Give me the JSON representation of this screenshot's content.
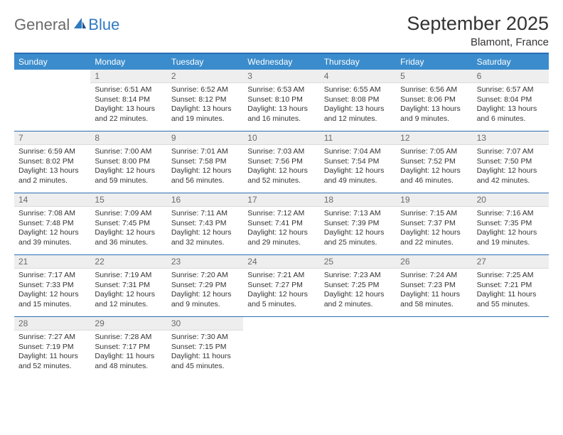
{
  "brand": {
    "part1": "General",
    "part2": "Blue"
  },
  "title": "September 2025",
  "location": "Blamont, France",
  "colors": {
    "header_bg": "#3b8ccc",
    "header_border": "#2a6fb5",
    "daynum_bg": "#eeeeee",
    "text": "#333333",
    "muted": "#6a6a6a"
  },
  "day_names": [
    "Sunday",
    "Monday",
    "Tuesday",
    "Wednesday",
    "Thursday",
    "Friday",
    "Saturday"
  ],
  "weeks": [
    [
      {
        "num": "",
        "sunrise": "",
        "sunset": "",
        "daylight": ""
      },
      {
        "num": "1",
        "sunrise": "Sunrise: 6:51 AM",
        "sunset": "Sunset: 8:14 PM",
        "daylight": "Daylight: 13 hours and 22 minutes."
      },
      {
        "num": "2",
        "sunrise": "Sunrise: 6:52 AM",
        "sunset": "Sunset: 8:12 PM",
        "daylight": "Daylight: 13 hours and 19 minutes."
      },
      {
        "num": "3",
        "sunrise": "Sunrise: 6:53 AM",
        "sunset": "Sunset: 8:10 PM",
        "daylight": "Daylight: 13 hours and 16 minutes."
      },
      {
        "num": "4",
        "sunrise": "Sunrise: 6:55 AM",
        "sunset": "Sunset: 8:08 PM",
        "daylight": "Daylight: 13 hours and 12 minutes."
      },
      {
        "num": "5",
        "sunrise": "Sunrise: 6:56 AM",
        "sunset": "Sunset: 8:06 PM",
        "daylight": "Daylight: 13 hours and 9 minutes."
      },
      {
        "num": "6",
        "sunrise": "Sunrise: 6:57 AM",
        "sunset": "Sunset: 8:04 PM",
        "daylight": "Daylight: 13 hours and 6 minutes."
      }
    ],
    [
      {
        "num": "7",
        "sunrise": "Sunrise: 6:59 AM",
        "sunset": "Sunset: 8:02 PM",
        "daylight": "Daylight: 13 hours and 2 minutes."
      },
      {
        "num": "8",
        "sunrise": "Sunrise: 7:00 AM",
        "sunset": "Sunset: 8:00 PM",
        "daylight": "Daylight: 12 hours and 59 minutes."
      },
      {
        "num": "9",
        "sunrise": "Sunrise: 7:01 AM",
        "sunset": "Sunset: 7:58 PM",
        "daylight": "Daylight: 12 hours and 56 minutes."
      },
      {
        "num": "10",
        "sunrise": "Sunrise: 7:03 AM",
        "sunset": "Sunset: 7:56 PM",
        "daylight": "Daylight: 12 hours and 52 minutes."
      },
      {
        "num": "11",
        "sunrise": "Sunrise: 7:04 AM",
        "sunset": "Sunset: 7:54 PM",
        "daylight": "Daylight: 12 hours and 49 minutes."
      },
      {
        "num": "12",
        "sunrise": "Sunrise: 7:05 AM",
        "sunset": "Sunset: 7:52 PM",
        "daylight": "Daylight: 12 hours and 46 minutes."
      },
      {
        "num": "13",
        "sunrise": "Sunrise: 7:07 AM",
        "sunset": "Sunset: 7:50 PM",
        "daylight": "Daylight: 12 hours and 42 minutes."
      }
    ],
    [
      {
        "num": "14",
        "sunrise": "Sunrise: 7:08 AM",
        "sunset": "Sunset: 7:48 PM",
        "daylight": "Daylight: 12 hours and 39 minutes."
      },
      {
        "num": "15",
        "sunrise": "Sunrise: 7:09 AM",
        "sunset": "Sunset: 7:45 PM",
        "daylight": "Daylight: 12 hours and 36 minutes."
      },
      {
        "num": "16",
        "sunrise": "Sunrise: 7:11 AM",
        "sunset": "Sunset: 7:43 PM",
        "daylight": "Daylight: 12 hours and 32 minutes."
      },
      {
        "num": "17",
        "sunrise": "Sunrise: 7:12 AM",
        "sunset": "Sunset: 7:41 PM",
        "daylight": "Daylight: 12 hours and 29 minutes."
      },
      {
        "num": "18",
        "sunrise": "Sunrise: 7:13 AM",
        "sunset": "Sunset: 7:39 PM",
        "daylight": "Daylight: 12 hours and 25 minutes."
      },
      {
        "num": "19",
        "sunrise": "Sunrise: 7:15 AM",
        "sunset": "Sunset: 7:37 PM",
        "daylight": "Daylight: 12 hours and 22 minutes."
      },
      {
        "num": "20",
        "sunrise": "Sunrise: 7:16 AM",
        "sunset": "Sunset: 7:35 PM",
        "daylight": "Daylight: 12 hours and 19 minutes."
      }
    ],
    [
      {
        "num": "21",
        "sunrise": "Sunrise: 7:17 AM",
        "sunset": "Sunset: 7:33 PM",
        "daylight": "Daylight: 12 hours and 15 minutes."
      },
      {
        "num": "22",
        "sunrise": "Sunrise: 7:19 AM",
        "sunset": "Sunset: 7:31 PM",
        "daylight": "Daylight: 12 hours and 12 minutes."
      },
      {
        "num": "23",
        "sunrise": "Sunrise: 7:20 AM",
        "sunset": "Sunset: 7:29 PM",
        "daylight": "Daylight: 12 hours and 9 minutes."
      },
      {
        "num": "24",
        "sunrise": "Sunrise: 7:21 AM",
        "sunset": "Sunset: 7:27 PM",
        "daylight": "Daylight: 12 hours and 5 minutes."
      },
      {
        "num": "25",
        "sunrise": "Sunrise: 7:23 AM",
        "sunset": "Sunset: 7:25 PM",
        "daylight": "Daylight: 12 hours and 2 minutes."
      },
      {
        "num": "26",
        "sunrise": "Sunrise: 7:24 AM",
        "sunset": "Sunset: 7:23 PM",
        "daylight": "Daylight: 11 hours and 58 minutes."
      },
      {
        "num": "27",
        "sunrise": "Sunrise: 7:25 AM",
        "sunset": "Sunset: 7:21 PM",
        "daylight": "Daylight: 11 hours and 55 minutes."
      }
    ],
    [
      {
        "num": "28",
        "sunrise": "Sunrise: 7:27 AM",
        "sunset": "Sunset: 7:19 PM",
        "daylight": "Daylight: 11 hours and 52 minutes."
      },
      {
        "num": "29",
        "sunrise": "Sunrise: 7:28 AM",
        "sunset": "Sunset: 7:17 PM",
        "daylight": "Daylight: 11 hours and 48 minutes."
      },
      {
        "num": "30",
        "sunrise": "Sunrise: 7:30 AM",
        "sunset": "Sunset: 7:15 PM",
        "daylight": "Daylight: 11 hours and 45 minutes."
      },
      {
        "num": "",
        "sunrise": "",
        "sunset": "",
        "daylight": ""
      },
      {
        "num": "",
        "sunrise": "",
        "sunset": "",
        "daylight": ""
      },
      {
        "num": "",
        "sunrise": "",
        "sunset": "",
        "daylight": ""
      },
      {
        "num": "",
        "sunrise": "",
        "sunset": "",
        "daylight": ""
      }
    ]
  ]
}
